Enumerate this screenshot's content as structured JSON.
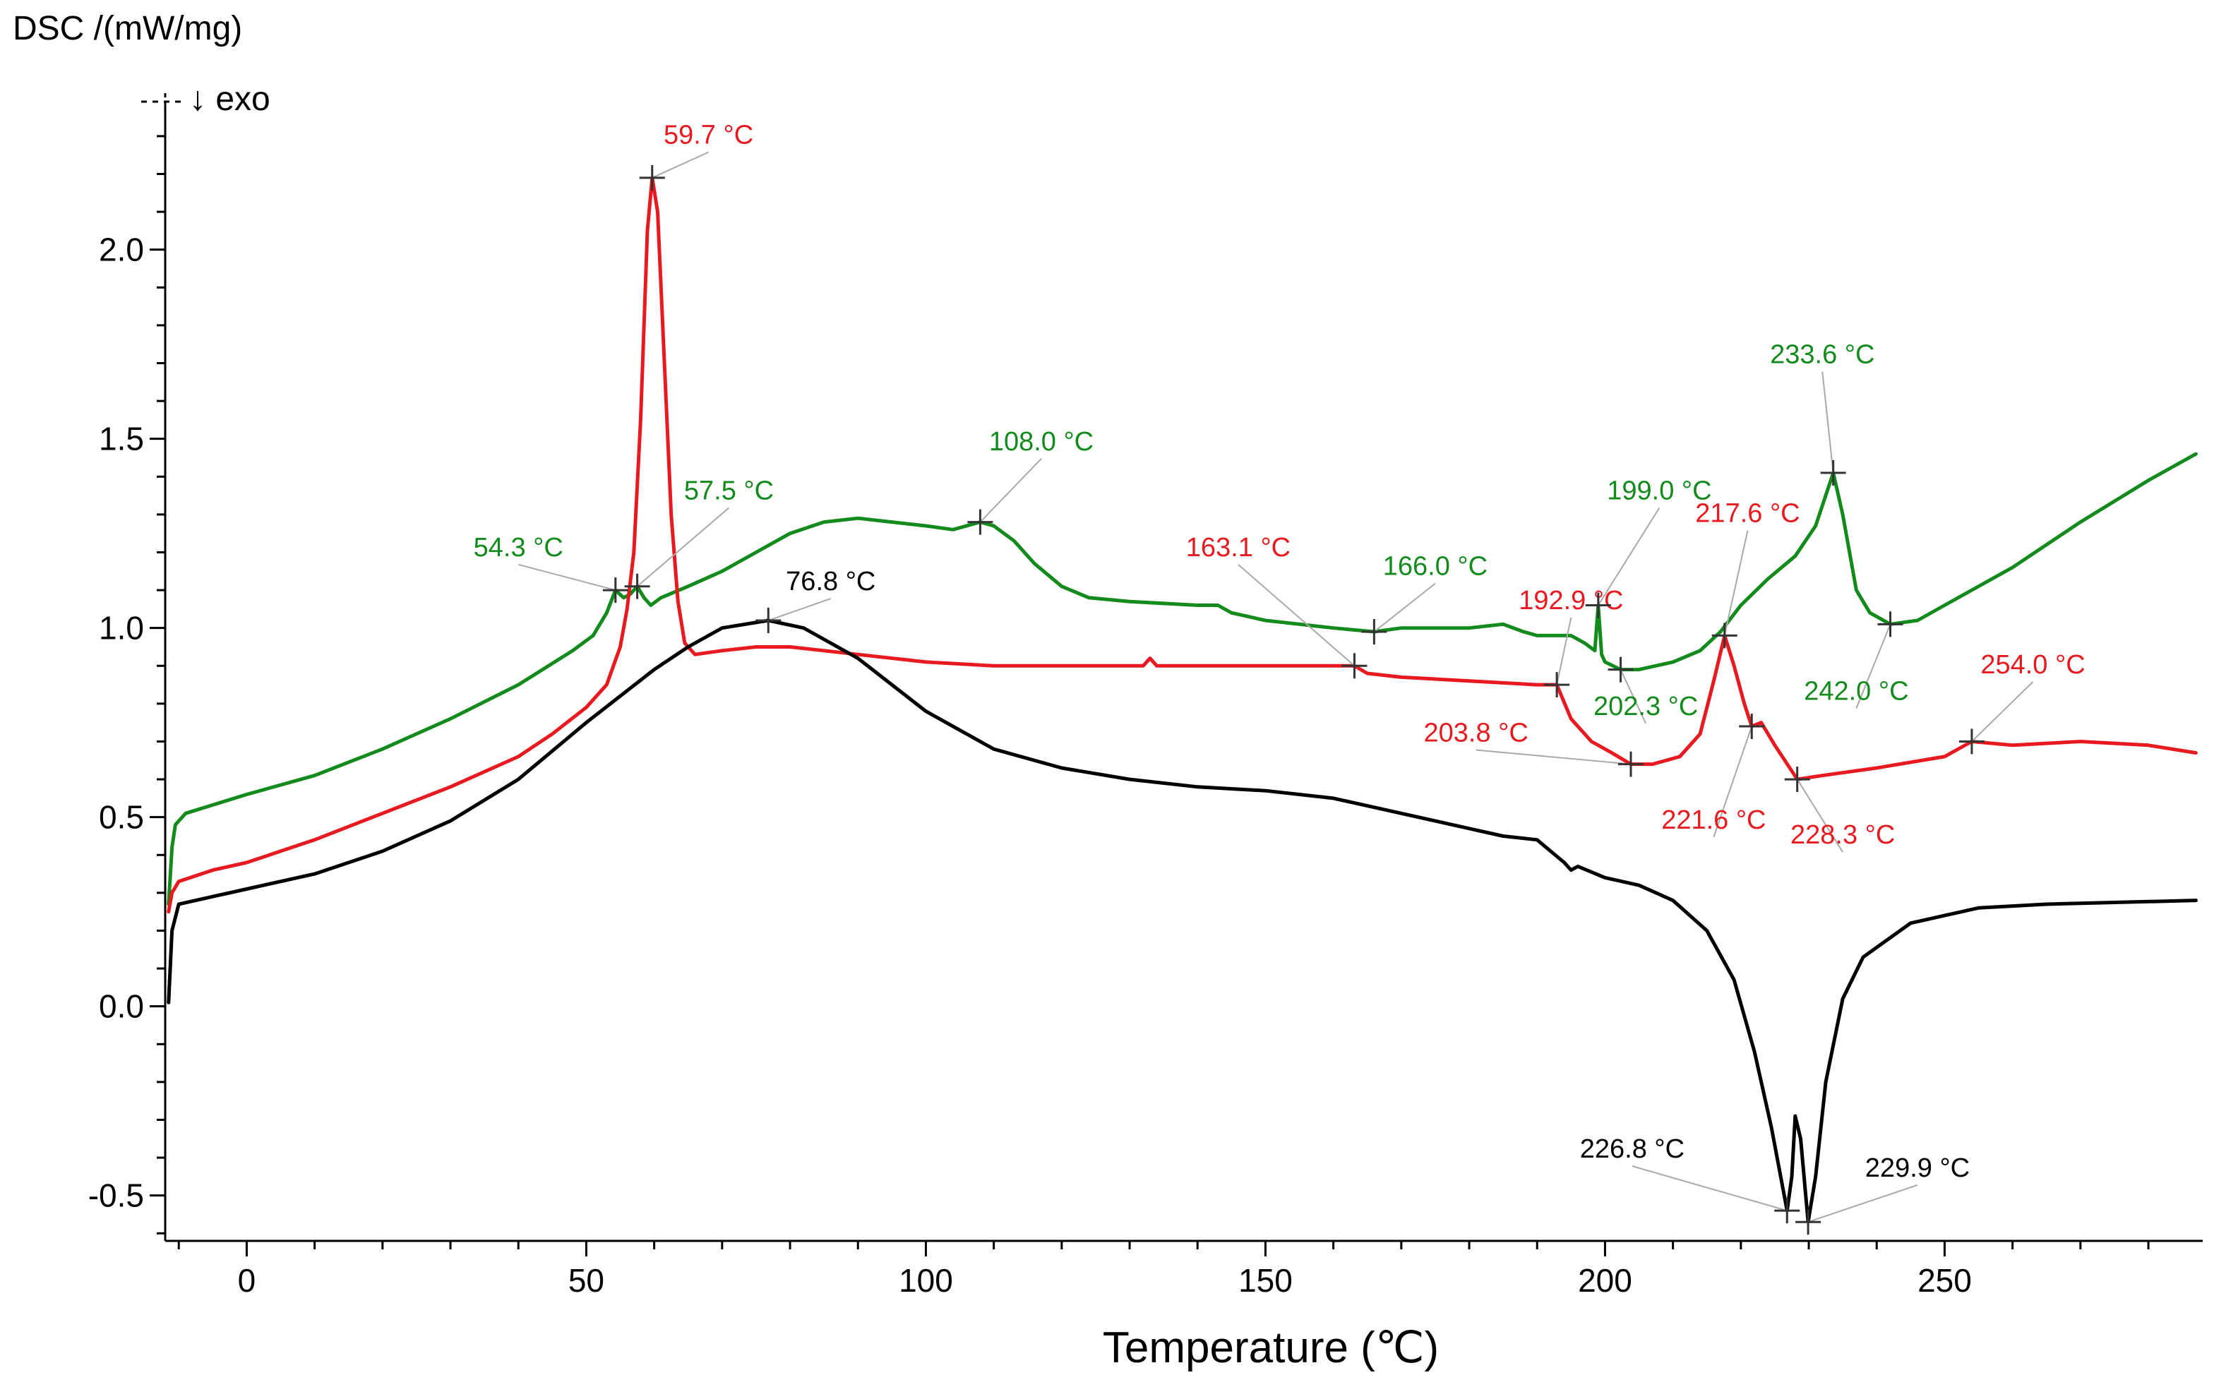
{
  "chart_data": {
    "type": "line",
    "title": "",
    "xlabel": "Temperature (℃)",
    "ylabel": "DSC /(mW/mg)",
    "exo_label": "↓ exo",
    "xlim": [
      -12,
      288
    ],
    "ylim": [
      -0.62,
      2.38
    ],
    "xticks": [
      0,
      50,
      100,
      150,
      200,
      250
    ],
    "xtick_labels": [
      "0",
      "50",
      "100",
      "150",
      "200",
      "250"
    ],
    "yticks": [
      2.0,
      1.5,
      1.0,
      0.5,
      0.0,
      -0.5
    ],
    "ytick_labels": [
      "2.0",
      "1.5",
      "1.0",
      "0.5",
      "0.0",
      "-0.5"
    ],
    "colors": {
      "red": "#e8191f",
      "green": "#128a1c",
      "black": "#000000",
      "leader": "#a9a9a9"
    },
    "series": [
      {
        "name": "green",
        "color": "#128a1c",
        "points": [
          [
            -11.5,
            0.27
          ],
          [
            -11,
            0.42
          ],
          [
            -10.5,
            0.48
          ],
          [
            -9,
            0.51
          ],
          [
            0,
            0.56
          ],
          [
            10,
            0.61
          ],
          [
            20,
            0.68
          ],
          [
            30,
            0.76
          ],
          [
            40,
            0.85
          ],
          [
            48,
            0.94
          ],
          [
            51,
            0.98
          ],
          [
            53,
            1.04
          ],
          [
            54.3,
            1.1
          ],
          [
            55.5,
            1.08
          ],
          [
            56.5,
            1.09
          ],
          [
            57.5,
            1.11
          ],
          [
            58.5,
            1.08
          ],
          [
            59.5,
            1.06
          ],
          [
            61,
            1.08
          ],
          [
            65,
            1.11
          ],
          [
            70,
            1.15
          ],
          [
            75,
            1.2
          ],
          [
            80,
            1.25
          ],
          [
            85,
            1.28
          ],
          [
            90,
            1.29
          ],
          [
            95,
            1.28
          ],
          [
            100,
            1.27
          ],
          [
            104,
            1.26
          ],
          [
            108,
            1.28
          ],
          [
            110,
            1.27
          ],
          [
            113,
            1.23
          ],
          [
            116,
            1.17
          ],
          [
            120,
            1.11
          ],
          [
            124,
            1.08
          ],
          [
            130,
            1.07
          ],
          [
            140,
            1.06
          ],
          [
            143,
            1.06
          ],
          [
            145,
            1.04
          ],
          [
            150,
            1.02
          ],
          [
            155,
            1.01
          ],
          [
            160,
            1.0
          ],
          [
            166,
            0.99
          ],
          [
            170,
            1.0
          ],
          [
            180,
            1.0
          ],
          [
            185,
            1.01
          ],
          [
            188,
            0.99
          ],
          [
            190,
            0.98
          ],
          [
            195,
            0.98
          ],
          [
            197,
            0.96
          ],
          [
            198.5,
            0.94
          ],
          [
            199,
            1.06
          ],
          [
            199.5,
            0.93
          ],
          [
            200,
            0.91
          ],
          [
            202.3,
            0.89
          ],
          [
            205,
            0.89
          ],
          [
            210,
            0.91
          ],
          [
            214,
            0.94
          ],
          [
            217,
            0.99
          ],
          [
            220,
            1.06
          ],
          [
            224,
            1.13
          ],
          [
            228,
            1.19
          ],
          [
            231,
            1.27
          ],
          [
            233.6,
            1.41
          ],
          [
            235,
            1.3
          ],
          [
            237,
            1.1
          ],
          [
            239,
            1.04
          ],
          [
            242,
            1.01
          ],
          [
            246,
            1.02
          ],
          [
            250,
            1.06
          ],
          [
            260,
            1.16
          ],
          [
            270,
            1.28
          ],
          [
            280,
            1.39
          ],
          [
            287,
            1.46
          ]
        ]
      },
      {
        "name": "red",
        "color": "#e8191f",
        "points": [
          [
            -11.5,
            0.25
          ],
          [
            -11,
            0.3
          ],
          [
            -10,
            0.33
          ],
          [
            -5,
            0.36
          ],
          [
            0,
            0.38
          ],
          [
            10,
            0.44
          ],
          [
            20,
            0.51
          ],
          [
            30,
            0.58
          ],
          [
            40,
            0.66
          ],
          [
            45,
            0.72
          ],
          [
            50,
            0.79
          ],
          [
            53,
            0.85
          ],
          [
            55,
            0.95
          ],
          [
            56,
            1.05
          ],
          [
            57,
            1.2
          ],
          [
            58,
            1.55
          ],
          [
            59,
            2.05
          ],
          [
            59.7,
            2.19
          ],
          [
            60.5,
            2.1
          ],
          [
            61.5,
            1.7
          ],
          [
            62.5,
            1.3
          ],
          [
            63.5,
            1.07
          ],
          [
            64.5,
            0.96
          ],
          [
            66,
            0.93
          ],
          [
            70,
            0.94
          ],
          [
            75,
            0.95
          ],
          [
            80,
            0.95
          ],
          [
            90,
            0.93
          ],
          [
            100,
            0.91
          ],
          [
            110,
            0.9
          ],
          [
            120,
            0.9
          ],
          [
            132,
            0.9
          ],
          [
            133,
            0.92
          ],
          [
            134,
            0.9
          ],
          [
            150,
            0.9
          ],
          [
            160,
            0.9
          ],
          [
            163.1,
            0.9
          ],
          [
            165,
            0.88
          ],
          [
            170,
            0.87
          ],
          [
            180,
            0.86
          ],
          [
            190,
            0.85
          ],
          [
            192.9,
            0.85
          ],
          [
            195,
            0.76
          ],
          [
            198,
            0.7
          ],
          [
            201,
            0.67
          ],
          [
            203.8,
            0.64
          ],
          [
            207,
            0.64
          ],
          [
            211,
            0.66
          ],
          [
            214,
            0.72
          ],
          [
            216,
            0.86
          ],
          [
            217.6,
            0.98
          ],
          [
            219,
            0.9
          ],
          [
            220.5,
            0.8
          ],
          [
            221.6,
            0.74
          ],
          [
            223,
            0.75
          ],
          [
            225,
            0.69
          ],
          [
            228.3,
            0.6
          ],
          [
            232,
            0.61
          ],
          [
            240,
            0.63
          ],
          [
            250,
            0.66
          ],
          [
            254,
            0.7
          ],
          [
            260,
            0.69
          ],
          [
            270,
            0.7
          ],
          [
            280,
            0.69
          ],
          [
            287,
            0.67
          ]
        ]
      },
      {
        "name": "black",
        "color": "#000000",
        "points": [
          [
            -11.5,
            0.01
          ],
          [
            -11,
            0.2
          ],
          [
            -10,
            0.27
          ],
          [
            -5,
            0.29
          ],
          [
            0,
            0.31
          ],
          [
            10,
            0.35
          ],
          [
            20,
            0.41
          ],
          [
            30,
            0.49
          ],
          [
            40,
            0.6
          ],
          [
            50,
            0.75
          ],
          [
            60,
            0.89
          ],
          [
            65,
            0.95
          ],
          [
            70,
            1.0
          ],
          [
            76.8,
            1.02
          ],
          [
            82,
            1.0
          ],
          [
            90,
            0.92
          ],
          [
            95,
            0.85
          ],
          [
            100,
            0.78
          ],
          [
            110,
            0.68
          ],
          [
            120,
            0.63
          ],
          [
            130,
            0.6
          ],
          [
            140,
            0.58
          ],
          [
            150,
            0.57
          ],
          [
            160,
            0.55
          ],
          [
            170,
            0.51
          ],
          [
            180,
            0.47
          ],
          [
            185,
            0.45
          ],
          [
            190,
            0.44
          ],
          [
            194,
            0.38
          ],
          [
            195,
            0.36
          ],
          [
            196,
            0.37
          ],
          [
            200,
            0.34
          ],
          [
            205,
            0.32
          ],
          [
            210,
            0.28
          ],
          [
            215,
            0.2
          ],
          [
            219,
            0.07
          ],
          [
            222,
            -0.12
          ],
          [
            224.5,
            -0.32
          ],
          [
            226.8,
            -0.54
          ],
          [
            227.5,
            -0.45
          ],
          [
            228,
            -0.29
          ],
          [
            228.8,
            -0.35
          ],
          [
            229.9,
            -0.57
          ],
          [
            231,
            -0.45
          ],
          [
            232.5,
            -0.2
          ],
          [
            235,
            0.02
          ],
          [
            238,
            0.13
          ],
          [
            245,
            0.22
          ],
          [
            255,
            0.26
          ],
          [
            265,
            0.27
          ],
          [
            287,
            0.28
          ]
        ]
      }
    ],
    "annotations": [
      {
        "text": "54.3 °C",
        "color": "#128a1c",
        "x": 54.3,
        "y": 1.1,
        "lx": 40,
        "ly": 1.19,
        "anchor": "middle"
      },
      {
        "text": "57.5 °C",
        "color": "#128a1c",
        "x": 57.5,
        "y": 1.11,
        "lx": 71,
        "ly": 1.34,
        "anchor": "middle"
      },
      {
        "text": "59.7 °C",
        "color": "#e8191f",
        "x": 59.7,
        "y": 2.19,
        "lx": 68,
        "ly": 2.28,
        "anchor": "middle"
      },
      {
        "text": "76.8 °C",
        "color": "#000000",
        "x": 76.8,
        "y": 1.02,
        "lx": 86,
        "ly": 1.1,
        "anchor": "middle"
      },
      {
        "text": "108.0 °C",
        "color": "#128a1c",
        "x": 108.0,
        "y": 1.28,
        "lx": 117,
        "ly": 1.47,
        "anchor": "middle"
      },
      {
        "text": "163.1 °C",
        "color": "#e8191f",
        "x": 163.1,
        "y": 0.9,
        "lx": 146,
        "ly": 1.19,
        "anchor": "middle"
      },
      {
        "text": "166.0 °C",
        "color": "#128a1c",
        "x": 166.0,
        "y": 0.99,
        "lx": 175,
        "ly": 1.14,
        "anchor": "middle"
      },
      {
        "text": "192.9 °C",
        "color": "#e8191f",
        "x": 192.9,
        "y": 0.85,
        "lx": 195,
        "ly": 1.05,
        "anchor": "middle"
      },
      {
        "text": "199.0 °C",
        "color": "#128a1c",
        "x": 199.0,
        "y": 1.06,
        "lx": 208,
        "ly": 1.34,
        "anchor": "middle"
      },
      {
        "text": "202.3 °C",
        "color": "#128a1c",
        "x": 202.3,
        "y": 0.89,
        "lx": 206,
        "ly": 0.77,
        "anchor": "middle"
      },
      {
        "text": "203.8 °C",
        "color": "#e8191f",
        "x": 203.8,
        "y": 0.64,
        "lx": 181,
        "ly": 0.7,
        "anchor": "middle"
      },
      {
        "text": "217.6 °C",
        "color": "#e8191f",
        "x": 217.6,
        "y": 0.98,
        "lx": 221,
        "ly": 1.28,
        "anchor": "middle"
      },
      {
        "text": "221.6 °C",
        "color": "#e8191f",
        "x": 221.6,
        "y": 0.74,
        "lx": 216,
        "ly": 0.47,
        "anchor": "middle"
      },
      {
        "text": "228.3 °C",
        "color": "#e8191f",
        "x": 228.3,
        "y": 0.6,
        "lx": 235,
        "ly": 0.43,
        "anchor": "middle"
      },
      {
        "text": "233.6 °C",
        "color": "#128a1c",
        "x": 233.6,
        "y": 1.41,
        "lx": 232,
        "ly": 1.7,
        "anchor": "middle"
      },
      {
        "text": "242.0 °C",
        "color": "#128a1c",
        "x": 242.0,
        "y": 1.01,
        "lx": 237,
        "ly": 0.81,
        "anchor": "middle"
      },
      {
        "text": "254.0 °C",
        "color": "#e8191f",
        "x": 254.0,
        "y": 0.7,
        "lx": 263,
        "ly": 0.88,
        "anchor": "middle"
      },
      {
        "text": "226.8 °C",
        "color": "#000000",
        "x": 226.8,
        "y": -0.54,
        "lx": 204,
        "ly": -0.4,
        "anchor": "middle"
      },
      {
        "text": "229.9 °C",
        "color": "#000000",
        "x": 229.9,
        "y": -0.57,
        "lx": 246,
        "ly": -0.45,
        "anchor": "middle"
      }
    ]
  }
}
